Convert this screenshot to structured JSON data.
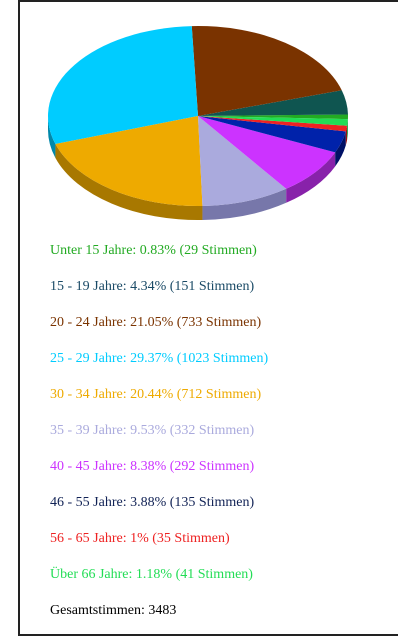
{
  "chart_data": {
    "type": "pie",
    "title": "",
    "series": [
      {
        "label": "Unter 15 Jahre: 0.83% (29 Stimmen)",
        "value": 0.83,
        "votes": 29,
        "color": "#22aa22",
        "side": "#157015"
      },
      {
        "label": "15 - 19 Jahre: 4.34% (151 Stimmen)",
        "value": 4.34,
        "votes": 151,
        "color": "#0f5550",
        "side": "#083532",
        "text_color": "#1a4a66"
      },
      {
        "label": "20 - 24 Jahre: 21.05% (733 Stimmen)",
        "value": 21.05,
        "votes": 733,
        "color": "#7a3300",
        "side": "#4a1f00"
      },
      {
        "label": "25 - 29 Jahre: 29.37% (1023 Stimmen)",
        "value": 29.37,
        "votes": 1023,
        "color": "#00ccff",
        "side": "#0088aa"
      },
      {
        "label": "30 - 34 Jahre: 20.44% (712 Stimmen)",
        "value": 20.44,
        "votes": 712,
        "color": "#eeaa00",
        "side": "#a87800"
      },
      {
        "label": "35 - 39 Jahre: 9.53% (332 Stimmen)",
        "value": 9.53,
        "votes": 332,
        "color": "#aaaadd",
        "side": "#7777aa"
      },
      {
        "label": "40 - 45 Jahre: 8.38% (292 Stimmen)",
        "value": 8.38,
        "votes": 292,
        "color": "#cc33ff",
        "side": "#8822aa"
      },
      {
        "label": "46 - 55 Jahre: 3.88% (135 Stimmen)",
        "value": 3.88,
        "votes": 135,
        "color": "#0022aa",
        "side": "#001166",
        "text_color": "#112255"
      },
      {
        "label": "56 - 65 Jahre: 1% (35 Stimmen)",
        "value": 1.0,
        "votes": 35,
        "color": "#ee2222",
        "side": "#991111"
      },
      {
        "label": "Über 66 Jahre: 1.18% (41 Stimmen)",
        "value": 1.18,
        "votes": 41,
        "color": "#22dd55",
        "side": "#119933"
      }
    ],
    "total_label": "Gesamtstimmen: 3483",
    "total_votes": 3483
  }
}
